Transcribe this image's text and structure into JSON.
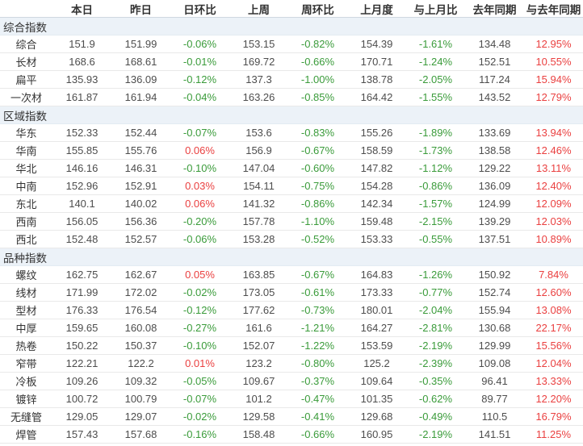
{
  "colors": {
    "positive_change_red": "#ea4040",
    "negative_change_green": "#3a9b3a",
    "group_row_background": "#ecf2f8"
  },
  "table": {
    "columns": [
      "",
      "本日",
      "昨日",
      "日环比",
      "上周",
      "周环比",
      "上月度",
      "与上月比",
      "去年同期",
      "与去年同期"
    ],
    "groups": [
      {
        "label": "综合指数",
        "rows": [
          {
            "label": "综合",
            "cells": [
              "151.9",
              "151.99",
              "-0.06%",
              "153.15",
              "-0.82%",
              "154.39",
              "-1.61%",
              "134.48",
              "12.95%"
            ]
          },
          {
            "label": "长材",
            "cells": [
              "168.6",
              "168.61",
              "-0.01%",
              "169.72",
              "-0.66%",
              "170.71",
              "-1.24%",
              "152.51",
              "10.55%"
            ]
          },
          {
            "label": "扁平",
            "cells": [
              "135.93",
              "136.09",
              "-0.12%",
              "137.3",
              "-1.00%",
              "138.78",
              "-2.05%",
              "117.24",
              "15.94%"
            ]
          },
          {
            "label": "一次材",
            "cells": [
              "161.87",
              "161.94",
              "-0.04%",
              "163.26",
              "-0.85%",
              "164.42",
              "-1.55%",
              "143.52",
              "12.79%"
            ]
          }
        ]
      },
      {
        "label": "区域指数",
        "rows": [
          {
            "label": "华东",
            "cells": [
              "152.33",
              "152.44",
              "-0.07%",
              "153.6",
              "-0.83%",
              "155.26",
              "-1.89%",
              "133.69",
              "13.94%"
            ]
          },
          {
            "label": "华南",
            "cells": [
              "155.85",
              "155.76",
              "0.06%",
              "156.9",
              "-0.67%",
              "158.59",
              "-1.73%",
              "138.58",
              "12.46%"
            ]
          },
          {
            "label": "华北",
            "cells": [
              "146.16",
              "146.31",
              "-0.10%",
              "147.04",
              "-0.60%",
              "147.82",
              "-1.12%",
              "129.22",
              "13.11%"
            ]
          },
          {
            "label": "中南",
            "cells": [
              "152.96",
              "152.91",
              "0.03%",
              "154.11",
              "-0.75%",
              "154.28",
              "-0.86%",
              "136.09",
              "12.40%"
            ]
          },
          {
            "label": "东北",
            "cells": [
              "140.1",
              "140.02",
              "0.06%",
              "141.32",
              "-0.86%",
              "142.34",
              "-1.57%",
              "124.99",
              "12.09%"
            ]
          },
          {
            "label": "西南",
            "cells": [
              "156.05",
              "156.36",
              "-0.20%",
              "157.78",
              "-1.10%",
              "159.48",
              "-2.15%",
              "139.29",
              "12.03%"
            ]
          },
          {
            "label": "西北",
            "cells": [
              "152.48",
              "152.57",
              "-0.06%",
              "153.28",
              "-0.52%",
              "153.33",
              "-0.55%",
              "137.51",
              "10.89%"
            ]
          }
        ]
      },
      {
        "label": "品种指数",
        "rows": [
          {
            "label": "螺纹",
            "cells": [
              "162.75",
              "162.67",
              "0.05%",
              "163.85",
              "-0.67%",
              "164.83",
              "-1.26%",
              "150.92",
              "7.84%"
            ]
          },
          {
            "label": "线材",
            "cells": [
              "171.99",
              "172.02",
              "-0.02%",
              "173.05",
              "-0.61%",
              "173.33",
              "-0.77%",
              "152.74",
              "12.60%"
            ]
          },
          {
            "label": "型材",
            "cells": [
              "176.33",
              "176.54",
              "-0.12%",
              "177.62",
              "-0.73%",
              "180.01",
              "-2.04%",
              "155.94",
              "13.08%"
            ]
          },
          {
            "label": "中厚",
            "cells": [
              "159.65",
              "160.08",
              "-0.27%",
              "161.6",
              "-1.21%",
              "164.27",
              "-2.81%",
              "130.68",
              "22.17%"
            ]
          },
          {
            "label": "热卷",
            "cells": [
              "150.22",
              "150.37",
              "-0.10%",
              "152.07",
              "-1.22%",
              "153.59",
              "-2.19%",
              "129.99",
              "15.56%"
            ]
          },
          {
            "label": "窄带",
            "cells": [
              "122.21",
              "122.2",
              "0.01%",
              "123.2",
              "-0.80%",
              "125.2",
              "-2.39%",
              "109.08",
              "12.04%"
            ]
          },
          {
            "label": "冷板",
            "cells": [
              "109.26",
              "109.32",
              "-0.05%",
              "109.67",
              "-0.37%",
              "109.64",
              "-0.35%",
              "96.41",
              "13.33%"
            ]
          },
          {
            "label": "镀锌",
            "cells": [
              "100.72",
              "100.79",
              "-0.07%",
              "101.2",
              "-0.47%",
              "101.35",
              "-0.62%",
              "89.77",
              "12.20%"
            ]
          },
          {
            "label": "无缝管",
            "cells": [
              "129.05",
              "129.07",
              "-0.02%",
              "129.58",
              "-0.41%",
              "129.68",
              "-0.49%",
              "110.5",
              "16.79%"
            ]
          },
          {
            "label": "焊管",
            "cells": [
              "157.43",
              "157.68",
              "-0.16%",
              "158.48",
              "-0.66%",
              "160.95",
              "-2.19%",
              "141.51",
              "11.25%"
            ]
          }
        ]
      }
    ]
  }
}
